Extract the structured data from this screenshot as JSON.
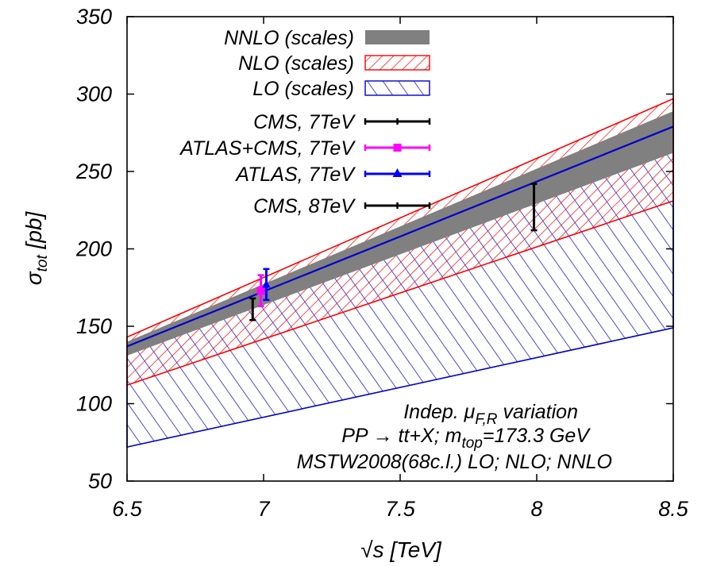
{
  "chart_data": {
    "type": "area",
    "xlabel_prefix": "√s",
    "xlabel_unit": "[TeV]",
    "ylabel_symbol": "σ",
    "ylabel_sub": "tot",
    "ylabel_unit": "[pb]",
    "xlim": [
      6.5,
      8.5
    ],
    "ylim": [
      50,
      350
    ],
    "xticks": [
      "6.5",
      "7",
      "7.5",
      "8",
      "8.5"
    ],
    "yticks": [
      "50",
      "100",
      "150",
      "200",
      "250",
      "300",
      "350"
    ],
    "xtick_values": [
      6.5,
      7,
      7.5,
      8,
      8.5
    ],
    "ytick_values": [
      50,
      100,
      150,
      200,
      250,
      300,
      350
    ],
    "grid": false,
    "legend_position": "top-left",
    "bands": [
      {
        "name": "NNLO (scales)",
        "style": "solid",
        "color": "#808080",
        "x": [
          6.5,
          8.5
        ],
        "low": [
          131,
          262
        ],
        "high": [
          140,
          289
        ]
      },
      {
        "name": "NLO (scales)",
        "style": "hatch",
        "color": "#ff0000",
        "x": [
          6.5,
          8.5
        ],
        "low": [
          112,
          231
        ],
        "high": [
          143,
          297
        ]
      },
      {
        "name": "LO (scales)",
        "style": "hatch",
        "color": "#0000cc",
        "x": [
          6.5,
          8.5
        ],
        "low": [
          72,
          149
        ],
        "high": [
          137,
          279
        ]
      }
    ],
    "measurements": [
      {
        "name": "CMS, 7TeV",
        "color": "#000000",
        "marker": "tick",
        "x": 6.96,
        "y": 161,
        "err": 7
      },
      {
        "name": "ATLAS+CMS, 7TeV",
        "color": "#ff00ff",
        "marker": "square",
        "x": 6.99,
        "y": 173,
        "err": 10
      },
      {
        "name": "ATLAS, 7TeV",
        "color": "#0000ff",
        "marker": "triangle",
        "x": 7.01,
        "y": 177,
        "err": 10
      },
      {
        "name": "CMS, 8TeV",
        "color": "#000000",
        "marker": "tick",
        "x": 7.99,
        "y": 227,
        "err": 15
      }
    ],
    "annotations": {
      "line1_pre": "Indep. ",
      "line1_mu": "μ",
      "line1_sub": "F,R",
      "line1_post": " variation",
      "line2_pre": "PP → tt+X; m",
      "line2_sub": "top",
      "line2_post": "=173.3 GeV",
      "line3": "MSTW2008(68c.l.) LO; NLO; NNLO"
    }
  }
}
